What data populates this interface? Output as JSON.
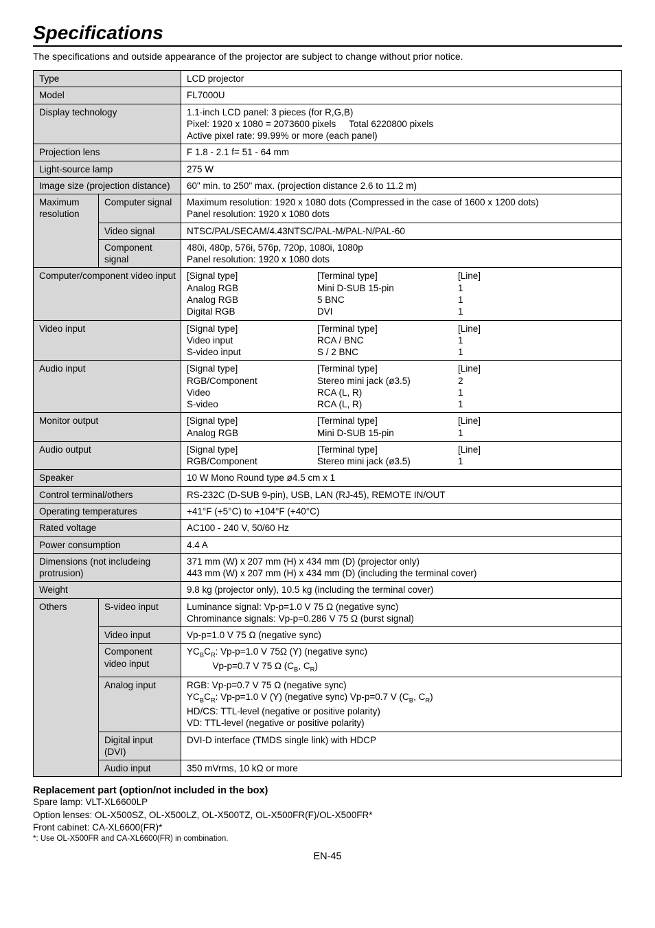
{
  "title": "Specifications",
  "intro": "The specifications and outside appearance of the projector are subject to change without prior notice.",
  "rows": {
    "type": {
      "label": "Type",
      "value": "LCD projector"
    },
    "model": {
      "label": "Model",
      "value": "FL7000U"
    },
    "display_tech": {
      "label": "Display technology",
      "v1": "1.1-inch LCD panel: 3 pieces (for R,G,B)",
      "v2a": "Pixel: 1920 x 1080 = 2073600 pixels",
      "v2b": "Total 6220800 pixels",
      "v3": "Active pixel rate: 99.99% or more (each panel)"
    },
    "projection_lens": {
      "label": "Projection lens",
      "value": "F 1.8 - 2.1  f= 51 - 64 mm"
    },
    "lamp": {
      "label": "Light-source lamp",
      "value": "275 W"
    },
    "image_size": {
      "label": "Image size (projection distance)",
      "value": "60\" min. to 250\" max. (projection distance 2.6 to 11.2 m)"
    },
    "maxres": {
      "label": "Maximum resolution",
      "computer": {
        "label": "Computer signal",
        "v1": "Maximum resolution: 1920 x 1080 dots (Compressed in the case of 1600 x 1200 dots)",
        "v2": "Panel resolution: 1920 x 1080 dots"
      },
      "video_sig": {
        "label": "Video signal",
        "value": "NTSC/PAL/SECAM/4.43NTSC/PAL-M/PAL-N/PAL-60"
      },
      "component": {
        "label": "Component signal",
        "v1": "480i, 480p, 576i, 576p, 720p, 1080i, 1080p",
        "v2": "Panel resolution: 1920 x 1080 dots"
      }
    },
    "comp_input": {
      "label": "Computer/component video input",
      "sig": [
        "[Signal type]",
        "Analog RGB",
        "Analog RGB",
        "Digital RGB"
      ],
      "term": [
        "[Terminal type]",
        "Mini D-SUB 15-pin",
        "5 BNC",
        "DVI"
      ],
      "line": [
        "[Line]",
        "1",
        "1",
        "1"
      ]
    },
    "video_input": {
      "label": "Video input",
      "sig": [
        "[Signal type]",
        "Video input",
        "S-video input"
      ],
      "term": [
        "[Terminal type]",
        "RCA / BNC",
        "S / 2 BNC"
      ],
      "line": [
        "[Line]",
        "1",
        "1"
      ]
    },
    "audio_input": {
      "label": "Audio input",
      "sig": [
        "[Signal type]",
        "RGB/Component",
        "Video",
        "S-video"
      ],
      "term": [
        "[Terminal type]",
        "Stereo mini jack (ø3.5)",
        "RCA (L, R)",
        "RCA (L, R)"
      ],
      "line": [
        "[Line]",
        "2",
        "1",
        "1"
      ]
    },
    "monitor_output": {
      "label": "Monitor output",
      "sig": [
        "[Signal type]",
        "Analog RGB"
      ],
      "term": [
        "[Terminal type]",
        "Mini D-SUB 15-pin"
      ],
      "line": [
        "[Line]",
        "1"
      ]
    },
    "audio_output": {
      "label": "Audio output",
      "sig": [
        "[Signal type]",
        "RGB/Component"
      ],
      "term": [
        "[Terminal type]",
        "Stereo mini jack (ø3.5)"
      ],
      "line": [
        "[Line]",
        "1"
      ]
    },
    "speaker": {
      "label": "Speaker",
      "value": "10 W Mono Round type ø4.5 cm x 1"
    },
    "control": {
      "label": "Control terminal/others",
      "value": "RS-232C (D-SUB 9-pin), USB, LAN (RJ-45), REMOTE IN/OUT"
    },
    "optemp": {
      "label": "Operating temperatures",
      "value": "+41°F (+5°C) to +104°F (+40°C)"
    },
    "voltage": {
      "label": "Rated voltage",
      "value": "AC100 - 240 V, 50/60 Hz"
    },
    "power": {
      "label": "Power consumption",
      "value": "4.4 A"
    },
    "dims": {
      "label": "Dimensions (not includeing protrusion)",
      "v1": "371 mm (W) x 207 mm (H) x 434 mm (D) (projector only)",
      "v2": "443 mm (W) x 207 mm (H) x 434 mm (D) (including the terminal cover)"
    },
    "weight": {
      "label": "Weight",
      "value": "9.8 kg (projector only), 10.5 kg (including the terminal cover)"
    },
    "others": {
      "label": "Others",
      "s_video": {
        "label": "S-video input",
        "v1": "Luminance signal: Vp-p=1.0 V 75 Ω (negative sync)",
        "v2": "Chrominance signals: Vp-p=0.286 V 75 Ω (burst signal)"
      },
      "video": {
        "label": "Video input",
        "value": "Vp-p=1.0 V  75 Ω (negative sync)"
      },
      "component": {
        "label": "Component video input"
      },
      "analog": {
        "label": "Analog input",
        "v1": "RGB: Vp-p=0.7 V 75 Ω (negative sync)",
        "v3": "HD/CS: TTL-level (negative or positive polarity)",
        "v4": "VD: TTL-level (negative or positive polarity)"
      },
      "digital": {
        "label": "Digital input (DVI)",
        "value": "DVI-D interface (TMDS single link) with HDCP"
      },
      "audio": {
        "label": "Audio input",
        "value": "350 mVrms, 10 kΩ or more"
      }
    }
  },
  "replacement": {
    "heading": "Replacement part (option/not included in the box)",
    "lamp": "Spare lamp: VLT-XL6600LP",
    "lenses": "Option lenses: OL-X500SZ, OL-X500LZ, OL-X500TZ, OL-X500FR(F)/OL-X500FR*",
    "cabinet": "Front cabinet: CA-XL6600(FR)*",
    "note": "*: Use OL-X500FR and CA-XL6600(FR) in combination."
  },
  "page": "EN-45"
}
